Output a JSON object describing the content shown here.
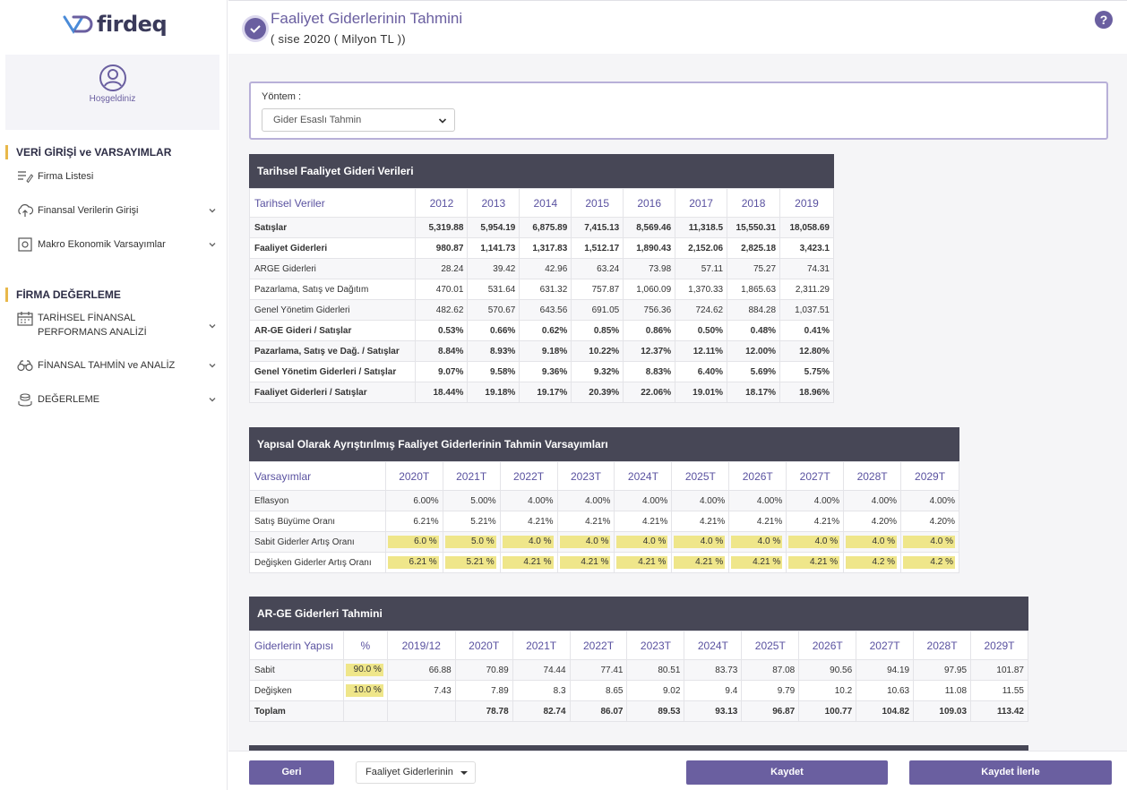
{
  "brand": {
    "name": "firdeq"
  },
  "sidebar": {
    "welcome": "Hoşgeldiniz",
    "sections": [
      {
        "title": "VERİ GİRİŞİ ve VARSAYIMLAR",
        "items": [
          {
            "label": "Firma Listesi",
            "icon": "list-edit-icon"
          },
          {
            "label": "Finansal Verilerin Girişi",
            "icon": "cloud-upload-icon"
          },
          {
            "label": "Makro Ekonomik Varsayımlar",
            "icon": "settings-box-icon"
          }
        ]
      },
      {
        "title": "FİRMA DEĞERLEME",
        "items": [
          {
            "label": "TARİHSEL FİNANSAL",
            "label2": "PERFORMANS ANALİZİ",
            "icon": "calendar-icon"
          },
          {
            "label": "FİNANSAL TAHMİN ve ANALİZ",
            "icon": "binoculars-icon"
          },
          {
            "label": "DEĞERLEME",
            "icon": "coins-icon"
          }
        ]
      }
    ]
  },
  "header": {
    "title": "Faaliyet Giderlerinin Tahmini",
    "subtitle": "( sise 2020 ( Milyon TL ))"
  },
  "method": {
    "label": "Yöntem :",
    "selected": "Gider Esaslı Tahmin"
  },
  "historical": {
    "title": "Tarihsel Faaliyet Gideri Verileri",
    "header": [
      "Tarihsel Veriler",
      "2012",
      "2013",
      "2014",
      "2015",
      "2016",
      "2017",
      "2018",
      "2019"
    ],
    "rows": [
      {
        "cells": [
          "Satışlar",
          "5,319.88",
          "5,954.19",
          "6,875.89",
          "7,415.13",
          "8,569.46",
          "11,318.5",
          "15,550.31",
          "18,058.69"
        ],
        "bold": true
      },
      {
        "cells": [
          "Faaliyet Giderleri",
          "980.87",
          "1,141.73",
          "1,317.83",
          "1,512.17",
          "1,890.43",
          "2,152.06",
          "2,825.18",
          "3,423.1"
        ],
        "bold": true
      },
      {
        "cells": [
          "ARGE Giderleri",
          "28.24",
          "39.42",
          "42.96",
          "63.24",
          "73.98",
          "57.11",
          "75.27",
          "74.31"
        ],
        "bold": false
      },
      {
        "cells": [
          "Pazarlama, Satış ve Dağıtım",
          "470.01",
          "531.64",
          "631.32",
          "757.87",
          "1,060.09",
          "1,370.33",
          "1,865.63",
          "2,311.29"
        ],
        "bold": false
      },
      {
        "cells": [
          "Genel Yönetim Giderleri",
          "482.62",
          "570.67",
          "643.56",
          "691.05",
          "756.36",
          "724.62",
          "884.28",
          "1,037.51"
        ],
        "bold": false
      },
      {
        "cells": [
          "AR-GE Gideri / Satışlar",
          "0.53%",
          "0.66%",
          "0.62%",
          "0.85%",
          "0.86%",
          "0.50%",
          "0.48%",
          "0.41%"
        ],
        "bold": true
      },
      {
        "cells": [
          "Pazarlama, Satış ve Dağ. / Satışlar",
          "8.84%",
          "8.93%",
          "9.18%",
          "10.22%",
          "12.37%",
          "12.11%",
          "12.00%",
          "12.80%"
        ],
        "bold": true
      },
      {
        "cells": [
          "Genel Yönetim Giderleri / Satışlar",
          "9.07%",
          "9.58%",
          "9.36%",
          "9.32%",
          "8.83%",
          "6.40%",
          "5.69%",
          "5.75%"
        ],
        "bold": true
      },
      {
        "cells": [
          "Faaliyet Giderleri / Satışlar",
          "18.44%",
          "19.18%",
          "19.17%",
          "20.39%",
          "22.06%",
          "19.01%",
          "18.17%",
          "18.96%"
        ],
        "bold": true
      }
    ]
  },
  "assumptions": {
    "title": "Yapısal Olarak Ayrıştırılmış Faaliyet Giderlerinin Tahmin Varsayımları",
    "header": [
      "Varsayımlar",
      "2020T",
      "2021T",
      "2022T",
      "2023T",
      "2024T",
      "2025T",
      "2026T",
      "2027T",
      "2028T",
      "2029T"
    ],
    "rows": [
      {
        "cells": [
          "Eflasyon",
          "6.00%",
          "5.00%",
          "4.00%",
          "4.00%",
          "4.00%",
          "4.00%",
          "4.00%",
          "4.00%",
          "4.00%",
          "4.00%"
        ],
        "input": false
      },
      {
        "cells": [
          "Satış Büyüme Oranı",
          "6.21%",
          "5.21%",
          "4.21%",
          "4.21%",
          "4.21%",
          "4.21%",
          "4.21%",
          "4.21%",
          "4.20%",
          "4.20%"
        ],
        "input": false
      },
      {
        "cells": [
          "Sabit Giderler Artış Oranı",
          "6.0 %",
          "5.0 %",
          "4.0 %",
          "4.0 %",
          "4.0 %",
          "4.0 %",
          "4.0 %",
          "4.0 %",
          "4.0 %",
          "4.0 %"
        ],
        "input": true
      },
      {
        "cells": [
          "Değişken Giderler Artış Oranı",
          "6.21 %",
          "5.21 %",
          "4.21 %",
          "4.21 %",
          "4.21 %",
          "4.21 %",
          "4.21 %",
          "4.21 %",
          "4.2 %",
          "4.2 %"
        ],
        "input": true
      }
    ]
  },
  "arge": {
    "title": "AR-GE Giderleri Tahmini",
    "header": [
      "Giderlerin Yapısı",
      "%",
      "2019/12",
      "2020T",
      "2021T",
      "2022T",
      "2023T",
      "2024T",
      "2025T",
      "2026T",
      "2027T",
      "2028T",
      "2029T"
    ],
    "rows": [
      {
        "cells": [
          "Sabit",
          "90.0 %",
          "66.88",
          "70.89",
          "74.44",
          "77.41",
          "80.51",
          "83.73",
          "87.08",
          "90.56",
          "94.19",
          "97.95",
          "101.87"
        ],
        "bold": false
      },
      {
        "cells": [
          "Değişken",
          "10.0 %",
          "7.43",
          "7.89",
          "8.3",
          "8.65",
          "9.02",
          "9.4",
          "9.79",
          "10.2",
          "10.63",
          "11.08",
          "11.55"
        ],
        "bold": false
      },
      {
        "cells": [
          "Toplam",
          "",
          "",
          "78.78",
          "82.74",
          "86.07",
          "89.53",
          "93.13",
          "96.87",
          "100.77",
          "104.82",
          "109.03",
          "113.42"
        ],
        "bold": true
      }
    ]
  },
  "footer": {
    "back": "Geri",
    "dropdown": "Faaliyet Giderlerinin",
    "save": "Kaydet",
    "save_next": "Kaydet İlerle"
  },
  "colors": {
    "accent": "#6a5fa0",
    "table_header": "#474756",
    "highlight": "#efe68a",
    "section_marker": "#e8b84a"
  }
}
